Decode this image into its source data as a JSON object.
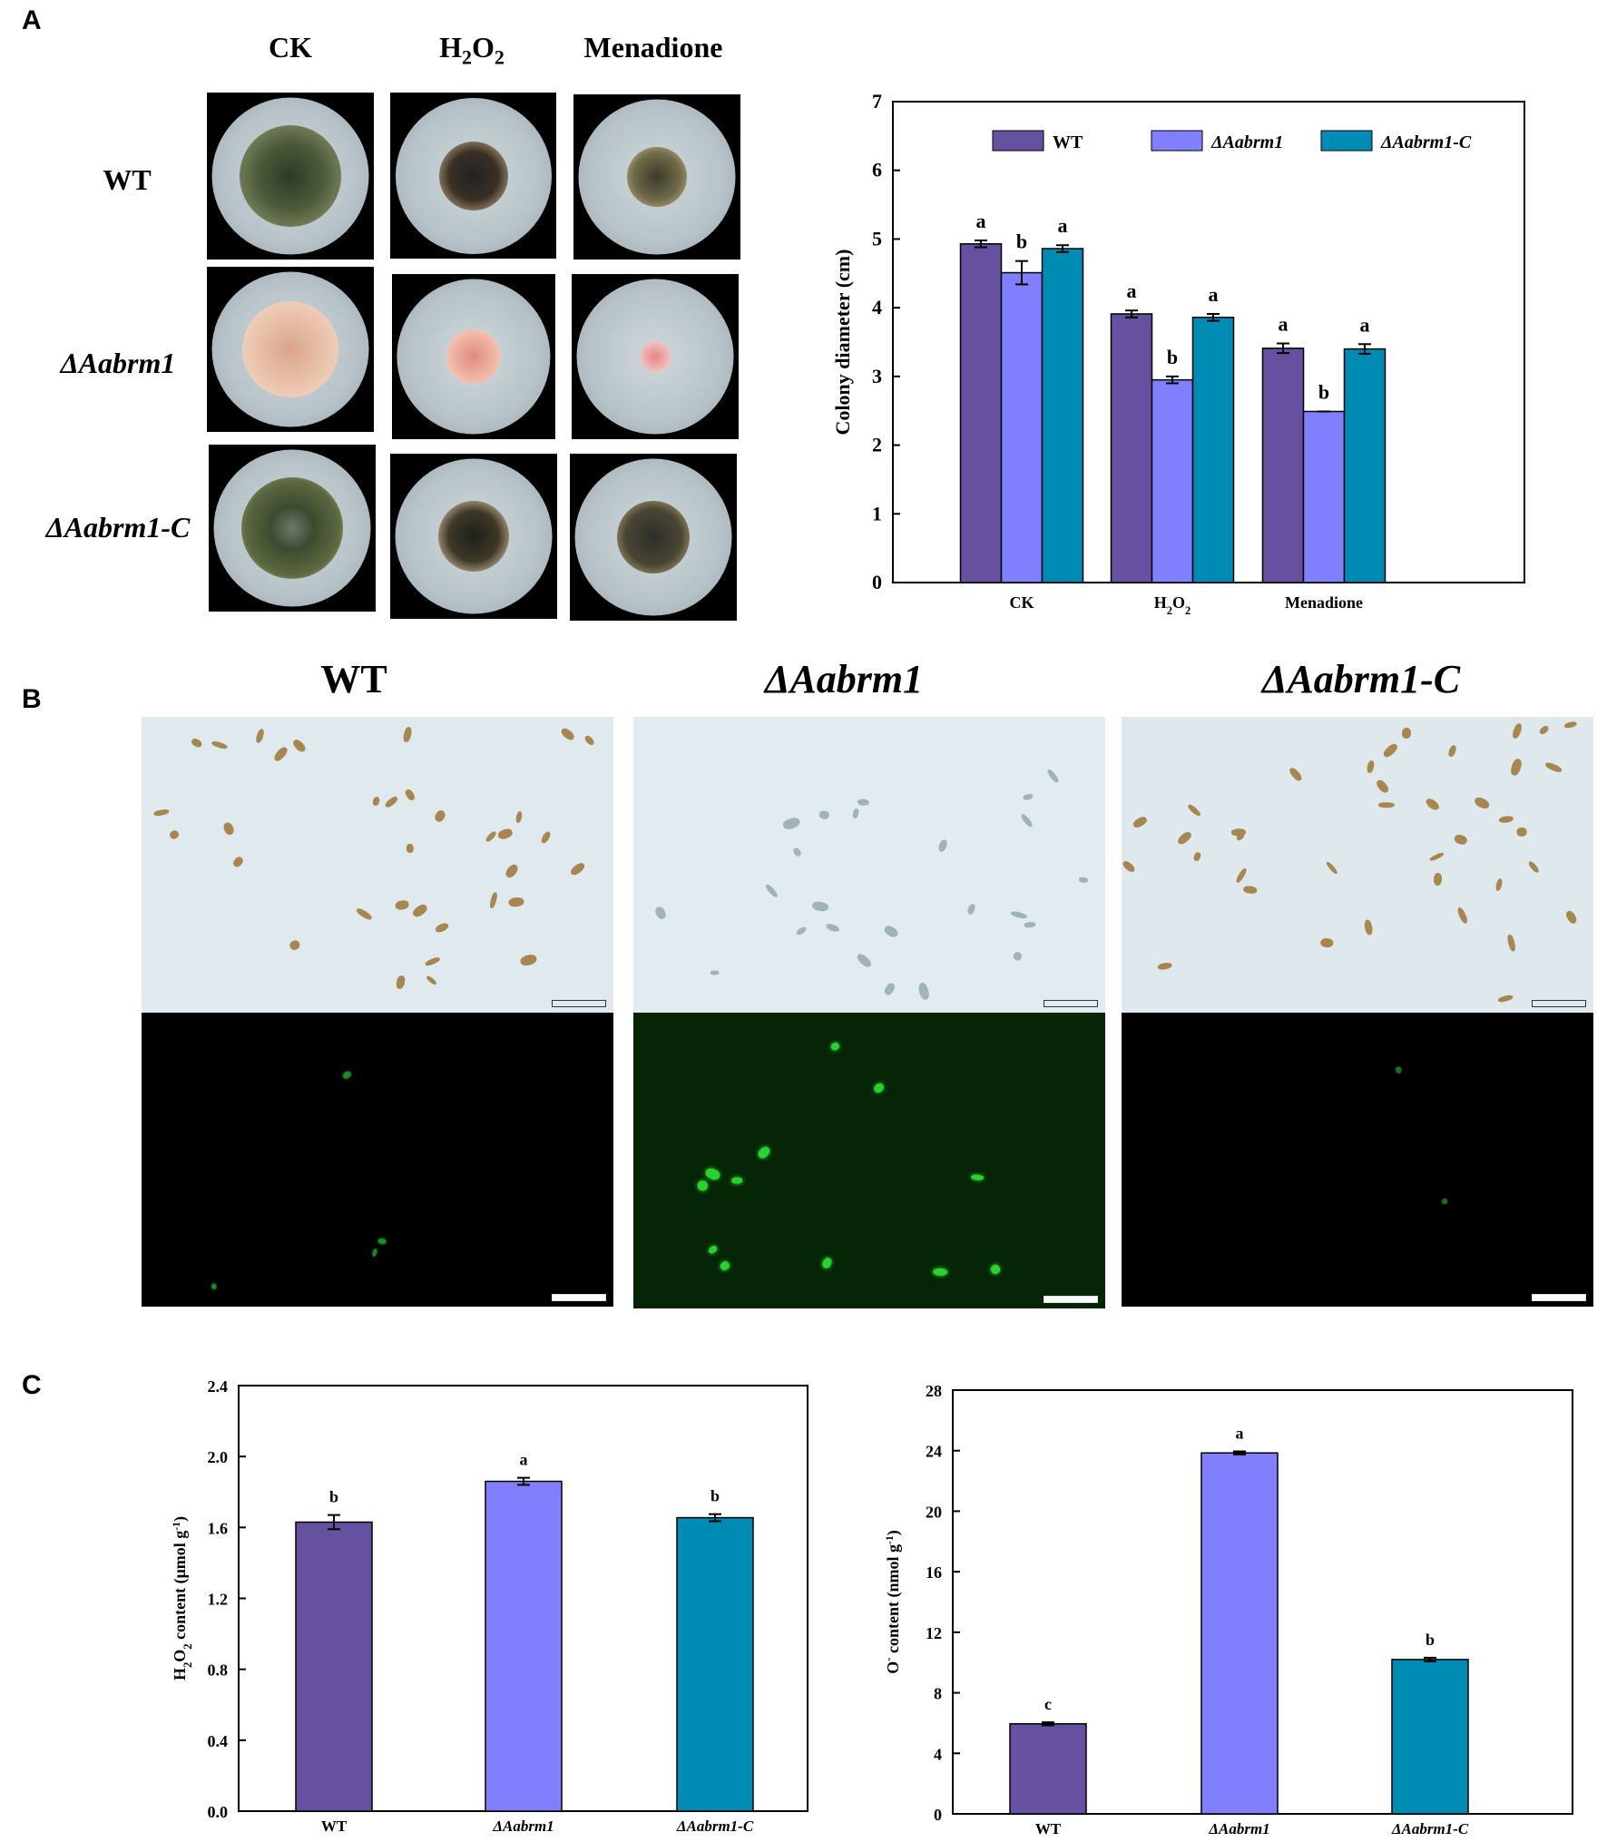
{
  "panels": {
    "a": "A",
    "b": "B",
    "c": "C"
  },
  "panel_a": {
    "col_headers": [
      "CK",
      "H2O2",
      "Menadione"
    ],
    "row_labels": [
      "WT",
      "ΔAabrm1",
      "ΔAabrm1-C"
    ]
  },
  "panel_b": {
    "col_headers": [
      "WT",
      "ΔAabrm1",
      "ΔAabrm1-C"
    ]
  },
  "colors": {
    "wt": "#6650a0",
    "mutant": "#8080ff",
    "complement": "#008bb5"
  },
  "chart_data": [
    {
      "type": "bar",
      "ylabel": "Colony diameter  (cm)",
      "ylim": [
        0,
        7
      ],
      "yticks": [
        0,
        1,
        2,
        3,
        4,
        5,
        6,
        7
      ],
      "categories": [
        "CK",
        "H2O2",
        "Menadione"
      ],
      "legend_position": "top",
      "series": [
        {
          "name": "WT",
          "values": [
            4.93,
            3.91,
            3.41
          ],
          "errors": [
            0.05,
            0.05,
            0.07
          ],
          "letters": [
            "a",
            "a",
            "a"
          ]
        },
        {
          "name": "ΔAabrm1",
          "values": [
            4.51,
            2.95,
            2.49
          ],
          "errors": [
            0.17,
            0.05,
            0.0
          ],
          "letters": [
            "b",
            "b",
            "b"
          ]
        },
        {
          "name": "ΔAabrm1-C",
          "values": [
            4.86,
            3.86,
            3.4
          ],
          "errors": [
            0.05,
            0.05,
            0.07
          ],
          "letters": [
            "a",
            "a",
            "a"
          ]
        }
      ]
    },
    {
      "type": "bar",
      "ylabel": "H2O2  content (μmol g-1)",
      "ylim": [
        0,
        2.4
      ],
      "yticks": [
        "0.0",
        "0.4",
        "0.8",
        "1.2",
        "1.6",
        "2.0",
        "2.4"
      ],
      "categories": [
        "WT",
        "ΔAabrm1",
        "ΔAabrm1-C"
      ],
      "values": [
        1.63,
        1.86,
        1.655
      ],
      "errors": [
        0.04,
        0.02,
        0.02
      ],
      "letters": [
        "b",
        "a",
        "b"
      ]
    },
    {
      "type": "bar",
      "ylabel": "O-  content (nmol g-1)",
      "ylim": [
        0,
        28
      ],
      "yticks": [
        0,
        4,
        8,
        12,
        16,
        20,
        24,
        28
      ],
      "categories": [
        "WT",
        "ΔAabrm1",
        "ΔAabrm1-C"
      ],
      "values": [
        5.95,
        23.85,
        10.2
      ],
      "errors": [
        0.1,
        0.1,
        0.12
      ],
      "letters": [
        "c",
        "a",
        "b"
      ]
    }
  ]
}
